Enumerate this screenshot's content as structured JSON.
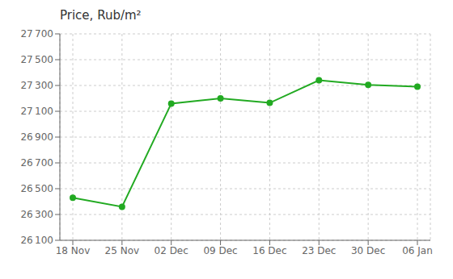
{
  "chart_data": {
    "type": "line",
    "title": "Price, Rub/m²",
    "categories": [
      "18 Nov",
      "25 Nov",
      "02 Dec",
      "09 Dec",
      "16 Dec",
      "23 Dec",
      "30 Dec",
      "06 Jan"
    ],
    "values": [
      26430,
      26360,
      27160,
      27200,
      27165,
      27340,
      27305,
      27290
    ],
    "color": "#22aa22",
    "marker": "circle",
    "ylim": [
      26100,
      27700
    ],
    "yticks": [
      {
        "value": 26100,
        "label": "26 100"
      },
      {
        "value": 26300,
        "label": "26 300"
      },
      {
        "value": 26500,
        "label": "26 500"
      },
      {
        "value": 26700,
        "label": "26 700"
      },
      {
        "value": 26900,
        "label": "26 900"
      },
      {
        "value": 27100,
        "label": "27 100"
      },
      {
        "value": 27300,
        "label": "27 300"
      },
      {
        "value": 27500,
        "label": "27 500"
      },
      {
        "value": 27700,
        "label": "27 700"
      }
    ],
    "grid": true
  }
}
